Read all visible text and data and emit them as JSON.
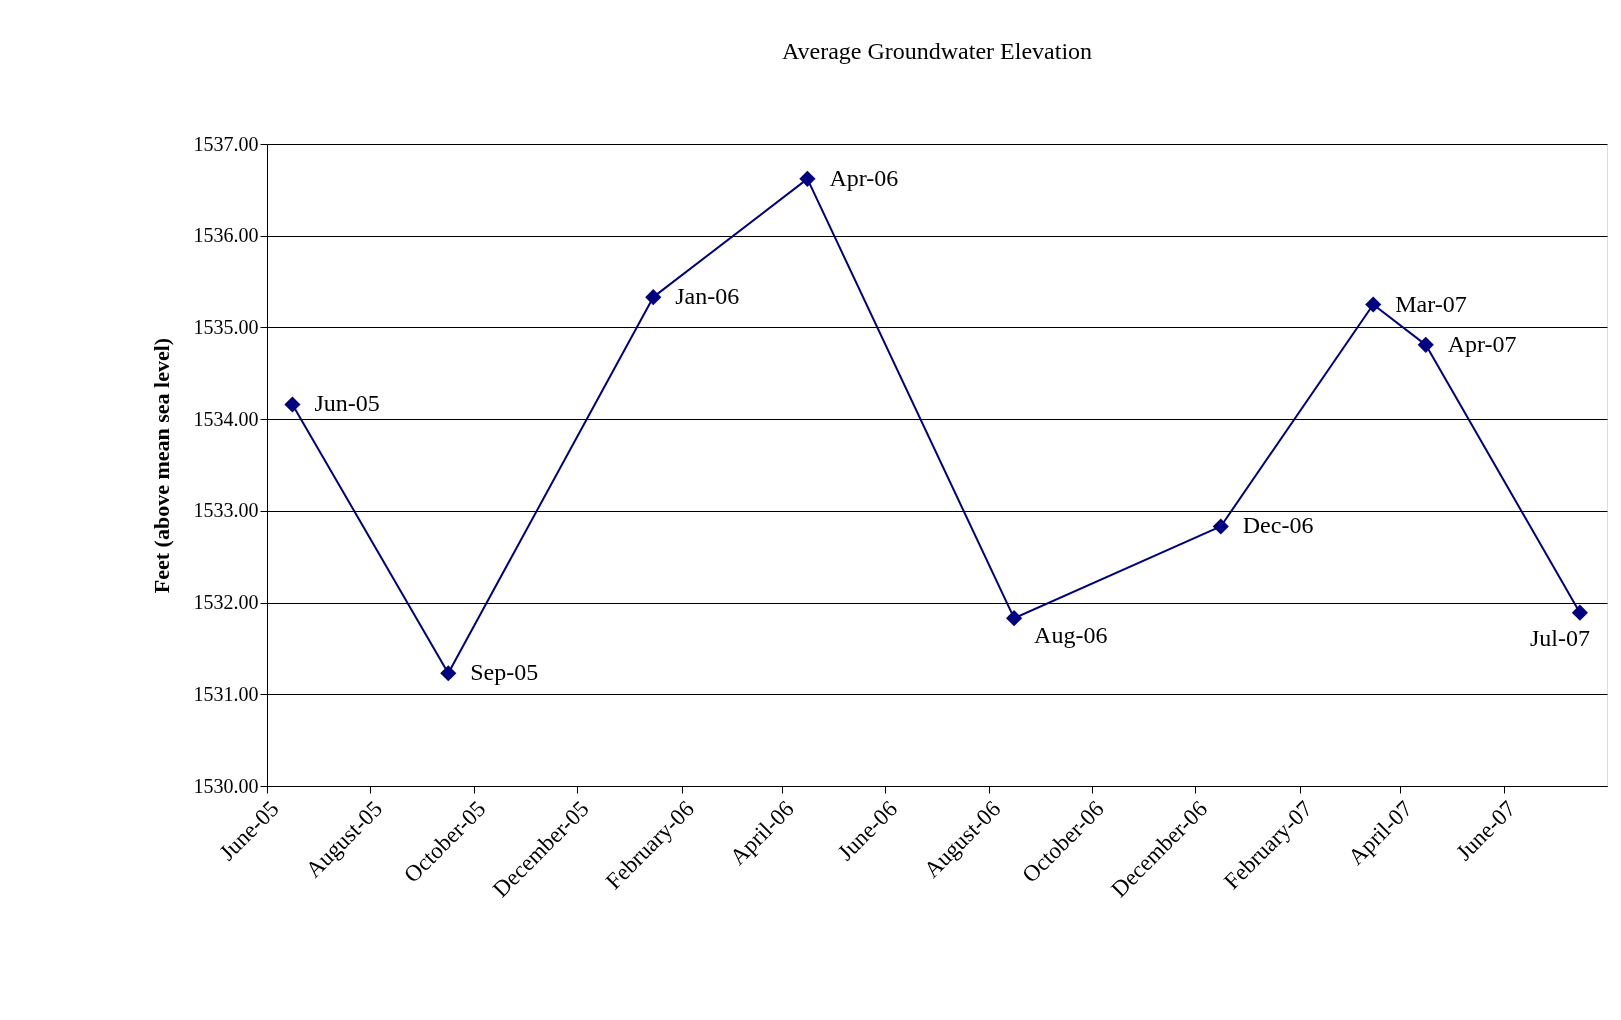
{
  "chart_data": {
    "type": "line",
    "title": "Average Groundwater Elevation",
    "ylabel": "Feet (above mean sea level)",
    "x": [
      "2005-06-16",
      "2005-09-16",
      "2006-01-15",
      "2006-04-16",
      "2006-08-16",
      "2006-12-16",
      "2007-03-16",
      "2007-04-16",
      "2007-07-16"
    ],
    "series": [
      {
        "color": "#000080",
        "values": [
          1534.16,
          1531.23,
          1535.33,
          1536.62,
          1531.83,
          1532.83,
          1535.25,
          1534.81,
          1531.89
        ]
      }
    ],
    "annotations": [
      {
        "text": "Jun-05",
        "x": "2005-06-16",
        "y": 1534.16
      },
      {
        "text": "Sep-05",
        "x": "2005-09-16",
        "y": 1531.23
      },
      {
        "text": "Jan-06",
        "x": "2006-01-15",
        "y": 1535.33
      },
      {
        "text": "Apr-06",
        "x": "2006-04-16",
        "y": 1536.62
      },
      {
        "text": "Aug-06",
        "x": "2006-08-16",
        "y": 1531.83
      },
      {
        "text": "Dec-06",
        "x": "2006-12-16",
        "y": 1532.83
      },
      {
        "text": "Mar-07",
        "x": "2007-03-16",
        "y": 1535.25
      },
      {
        "text": "Apr-07",
        "x": "2007-04-16",
        "y": 1534.81
      },
      {
        "text": "Jul-07",
        "x": "2007-07-16",
        "y": 1531.89
      }
    ],
    "xlim": [
      "2005-06-01",
      "2007-08-01"
    ],
    "xticks": [
      {
        "value": "2005-06-01",
        "label": "June-05"
      },
      {
        "value": "2005-08-01",
        "label": "August-05"
      },
      {
        "value": "2005-10-01",
        "label": "October-05"
      },
      {
        "value": "2005-12-01",
        "label": "December-05"
      },
      {
        "value": "2006-02-01",
        "label": "February-06"
      },
      {
        "value": "2006-04-01",
        "label": "April-06"
      },
      {
        "value": "2006-06-01",
        "label": "June-06"
      },
      {
        "value": "2006-08-01",
        "label": "August-06"
      },
      {
        "value": "2006-10-01",
        "label": "October-06"
      },
      {
        "value": "2006-12-01",
        "label": "December-06"
      },
      {
        "value": "2007-02-01",
        "label": "February-07"
      },
      {
        "value": "2007-04-01",
        "label": "April-07"
      },
      {
        "value": "2007-06-01",
        "label": "June-07"
      }
    ],
    "ylim": [
      1530,
      1537
    ],
    "yticks": [
      {
        "value": 1530,
        "label": "1530.00"
      },
      {
        "value": 1531,
        "label": "1531.00"
      },
      {
        "value": 1532,
        "label": "1532.00"
      },
      {
        "value": 1533,
        "label": "1533.00"
      },
      {
        "value": 1534,
        "label": "1534.00"
      },
      {
        "value": 1535,
        "label": "1535.00"
      },
      {
        "value": 1536,
        "label": "1536.00"
      },
      {
        "value": 1537,
        "label": "1537.00"
      }
    ],
    "grid": "y",
    "marker": "diamond",
    "line_style": "solid"
  }
}
